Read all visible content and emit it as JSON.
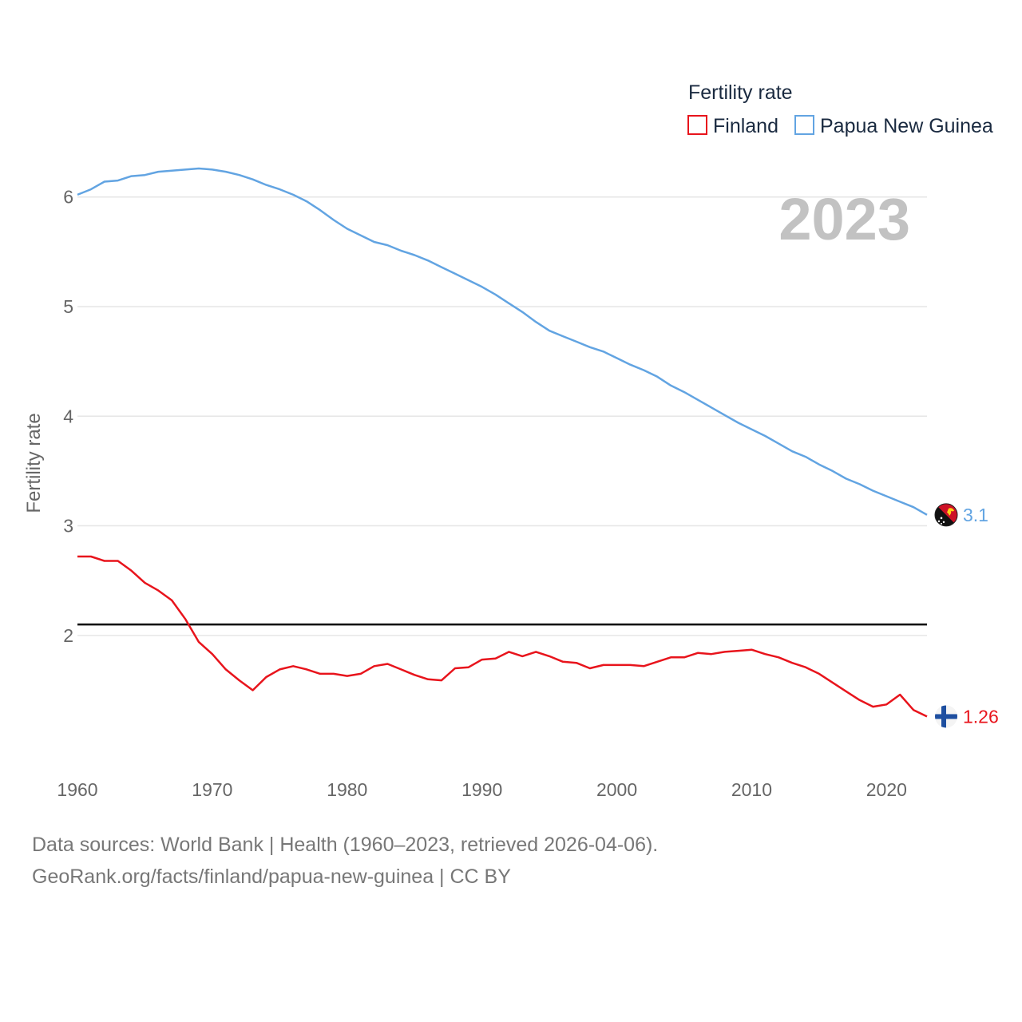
{
  "chart_data": {
    "type": "line",
    "title": "",
    "year_label": "2023",
    "ylabel": "Fertility rate",
    "xlabel": "",
    "xlim": [
      1960,
      2023
    ],
    "ylim": [
      0.95,
      6.85
    ],
    "xticks": [
      1960,
      1970,
      1980,
      1990,
      2000,
      2010,
      2020
    ],
    "yticks": [
      2,
      3,
      4,
      5,
      6
    ],
    "grid": true,
    "legend": {
      "title": "Fertility rate",
      "position": "top-right"
    },
    "reference_line": {
      "value": 2.1,
      "color": "#000000"
    },
    "x": [
      1960,
      1961,
      1962,
      1963,
      1964,
      1965,
      1966,
      1967,
      1968,
      1969,
      1970,
      1971,
      1972,
      1973,
      1974,
      1975,
      1976,
      1977,
      1978,
      1979,
      1980,
      1981,
      1982,
      1983,
      1984,
      1985,
      1986,
      1987,
      1988,
      1989,
      1990,
      1991,
      1992,
      1993,
      1994,
      1995,
      1996,
      1997,
      1998,
      1999,
      2000,
      2001,
      2002,
      2003,
      2004,
      2005,
      2006,
      2007,
      2008,
      2009,
      2010,
      2011,
      2012,
      2013,
      2014,
      2015,
      2016,
      2017,
      2018,
      2019,
      2020,
      2021,
      2022,
      2023
    ],
    "series": [
      {
        "name": "Finland",
        "color": "#e8141c",
        "end_label": "1.26",
        "values": [
          2.72,
          2.72,
          2.68,
          2.68,
          2.59,
          2.48,
          2.41,
          2.32,
          2.15,
          1.94,
          1.83,
          1.69,
          1.59,
          1.5,
          1.62,
          1.69,
          1.72,
          1.69,
          1.65,
          1.65,
          1.63,
          1.65,
          1.72,
          1.74,
          1.69,
          1.64,
          1.6,
          1.59,
          1.7,
          1.71,
          1.78,
          1.79,
          1.85,
          1.81,
          1.85,
          1.81,
          1.76,
          1.75,
          1.7,
          1.73,
          1.73,
          1.73,
          1.72,
          1.76,
          1.8,
          1.8,
          1.84,
          1.83,
          1.85,
          1.86,
          1.87,
          1.83,
          1.8,
          1.75,
          1.71,
          1.65,
          1.57,
          1.49,
          1.41,
          1.35,
          1.37,
          1.46,
          1.32,
          1.26
        ]
      },
      {
        "name": "Papua New Guinea",
        "color": "#62a4e2",
        "end_label": "3.1",
        "values": [
          6.02,
          6.07,
          6.14,
          6.15,
          6.19,
          6.2,
          6.23,
          6.24,
          6.25,
          6.26,
          6.25,
          6.23,
          6.2,
          6.16,
          6.11,
          6.07,
          6.02,
          5.96,
          5.88,
          5.79,
          5.71,
          5.65,
          5.59,
          5.56,
          5.51,
          5.47,
          5.42,
          5.36,
          5.3,
          5.24,
          5.18,
          5.11,
          5.03,
          4.95,
          4.86,
          4.78,
          4.73,
          4.68,
          4.63,
          4.59,
          4.53,
          4.47,
          4.42,
          4.36,
          4.28,
          4.22,
          4.15,
          4.08,
          4.01,
          3.94,
          3.88,
          3.82,
          3.75,
          3.68,
          3.63,
          3.56,
          3.5,
          3.43,
          3.38,
          3.32,
          3.27,
          3.22,
          3.17,
          3.1
        ]
      }
    ]
  },
  "footer": {
    "source_line": "Data sources: World Bank | Health (1960–2023, retrieved 2026-04-06).",
    "url_line": "GeoRank.org/facts/finland/papua-new-guinea | CC BY"
  },
  "flags": {
    "finland": "finland-flag-icon",
    "papua_new_guinea": "papua-new-guinea-flag-icon"
  }
}
